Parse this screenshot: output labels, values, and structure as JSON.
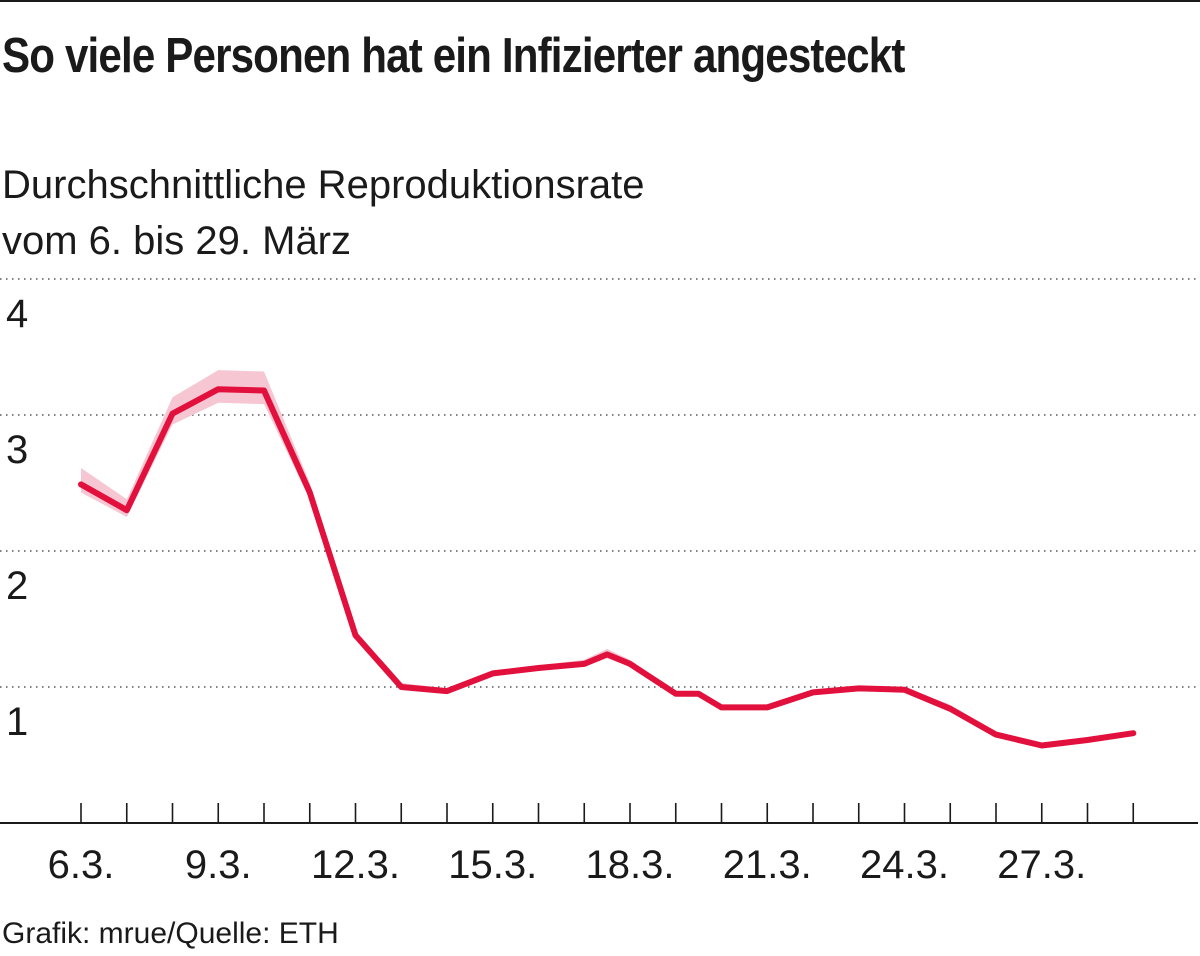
{
  "chart_data": {
    "type": "line",
    "title": "So viele Personen hat ein Infizierter angesteckt",
    "subtitle_lines": [
      "Durchschnittliche Reproduktionsrate",
      "vom 6. bis 29. März"
    ],
    "xlabel": "",
    "ylabel": "",
    "ylim": [
      0,
      4
    ],
    "y_ticks": [
      "4",
      "3",
      "2",
      "1"
    ],
    "x_ticks": [
      "6.3.",
      "9.3.",
      "12.3.",
      "15.3.",
      "18.3.",
      "21.3.",
      "24.3.",
      "27.3."
    ],
    "grid": true,
    "series": [
      {
        "color": "#e2103d",
        "band_color": "#f6c7d2",
        "x": [
          "6.3.",
          "7.3.",
          "8.3.",
          "9.3.",
          "10.3.",
          "11.3.",
          "12.3.",
          "13.3.",
          "14.3.",
          "15.3.",
          "16.3.",
          "17.3.",
          "17.5.3.",
          "18.3.",
          "19.3.",
          "19.5.3.",
          "20.3.",
          "21.3.",
          "22.3.",
          "23.3.",
          "24.3.",
          "25.3.",
          "26.3.",
          "27.3.",
          "28.3.",
          "29.3."
        ],
        "values": [
          2.49,
          2.3,
          3.01,
          3.19,
          3.18,
          2.43,
          1.38,
          1.0,
          0.97,
          1.1,
          1.14,
          1.17,
          1.24,
          1.17,
          0.95,
          0.95,
          0.85,
          0.85,
          0.96,
          0.99,
          0.98,
          0.84,
          0.65,
          0.57,
          0.61,
          0.66
        ],
        "lower": [
          2.43,
          2.25,
          2.93,
          3.09,
          3.08,
          2.38,
          1.35,
          0.99,
          0.96,
          1.08,
          1.12,
          1.15,
          1.21,
          1.15,
          0.93,
          0.93,
          0.84,
          0.84,
          0.95,
          0.97,
          0.96,
          0.82,
          0.63,
          0.56,
          0.6,
          0.64
        ],
        "upper": [
          2.61,
          2.38,
          3.13,
          3.33,
          3.32,
          2.5,
          1.41,
          1.03,
          0.99,
          1.12,
          1.16,
          1.2,
          1.28,
          1.2,
          0.97,
          0.97,
          0.87,
          0.87,
          0.98,
          1.01,
          1.0,
          0.87,
          0.67,
          0.59,
          0.63,
          0.68
        ]
      }
    ]
  },
  "footer": {
    "source": "Grafik: mrue/Quelle: ETH"
  }
}
